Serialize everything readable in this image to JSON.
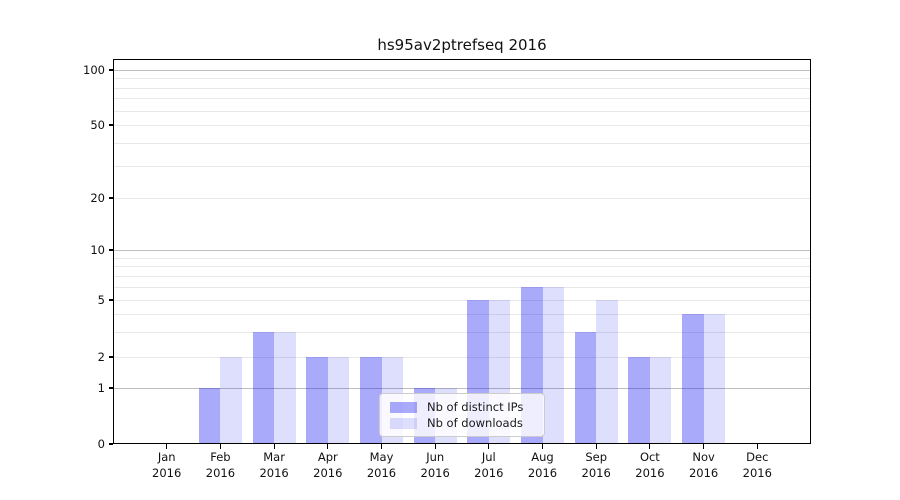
{
  "chart_data": {
    "type": "bar",
    "title": "hs95av2ptrefseq 2016",
    "categories": [
      "Jan 2016",
      "Feb 2016",
      "Mar 2016",
      "Apr 2016",
      "May 2016",
      "Jun 2016",
      "Jul 2016",
      "Aug 2016",
      "Sep 2016",
      "Oct 2016",
      "Nov 2016",
      "Dec 2016"
    ],
    "series": [
      {
        "name": "Nb of distinct IPs",
        "values": [
          0,
          1,
          3,
          2,
          2,
          1,
          5,
          6,
          3,
          2,
          4,
          0
        ],
        "color": "rgba(20,20,240,0.36)",
        "color_hex_on_white": "#a9a9f7"
      },
      {
        "name": "Nb of downloads",
        "values": [
          0,
          2,
          3,
          2,
          2,
          1,
          5,
          6,
          5,
          2,
          4,
          0
        ],
        "color": "rgba(20,20,240,0.14)",
        "color_hex_on_white": "#dedefb"
      }
    ],
    "yscale": "symlog",
    "y_ticks": [
      100,
      50,
      20,
      10,
      5,
      2,
      1,
      0
    ],
    "y_minor_gridlines": [
      2,
      3,
      4,
      5,
      6,
      7,
      8,
      9,
      20,
      30,
      40,
      50,
      60,
      70,
      80,
      90
    ],
    "y_major_gridlines": [
      1,
      10,
      100
    ],
    "ylim": [
      0,
      100
    ],
    "grid": true,
    "legend_position": "lower center",
    "bar_layout": "paired side-by-side per month"
  }
}
